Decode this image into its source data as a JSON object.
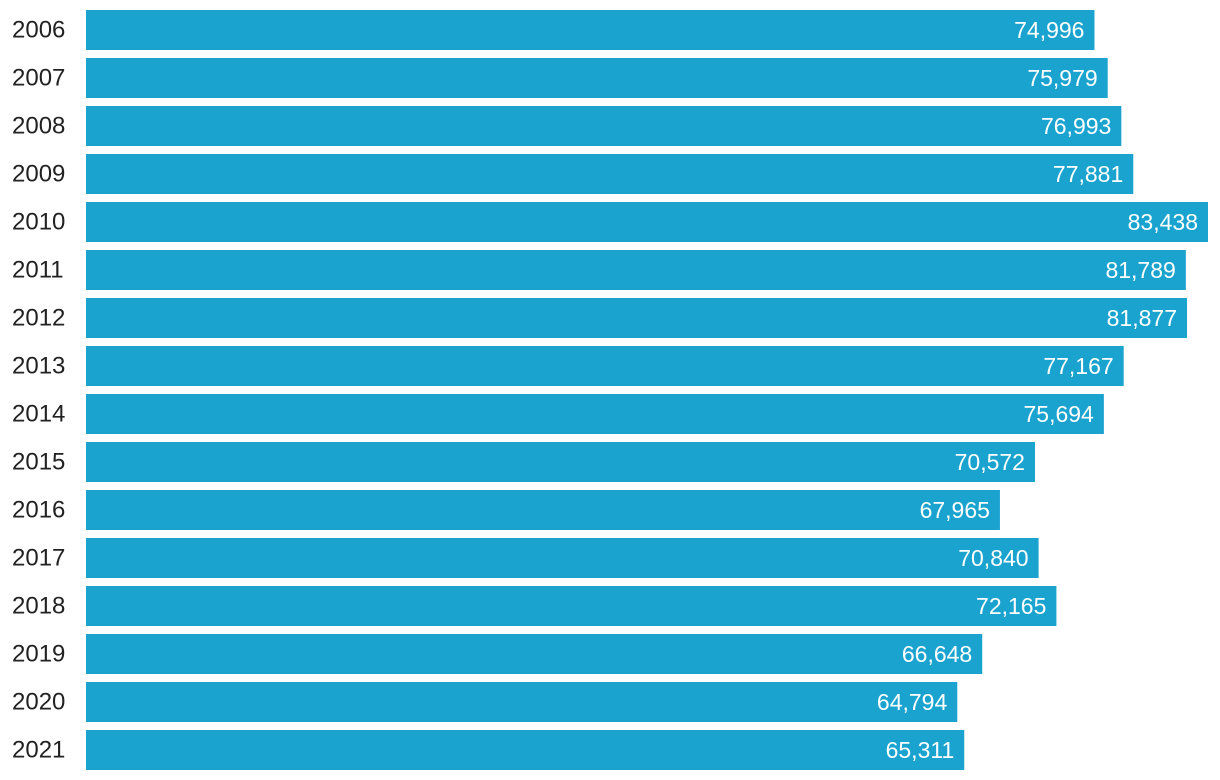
{
  "chart_data": {
    "type": "bar",
    "orientation": "horizontal",
    "title": "",
    "xlabel": "",
    "ylabel": "",
    "categories": [
      "2006",
      "2007",
      "2008",
      "2009",
      "2010",
      "2011",
      "2012",
      "2013",
      "2014",
      "2015",
      "2016",
      "2017",
      "2018",
      "2019",
      "2020",
      "2021"
    ],
    "values": [
      74996,
      75979,
      76993,
      77881,
      83438,
      81789,
      81877,
      77167,
      75694,
      70572,
      67965,
      70840,
      72165,
      66648,
      64794,
      65311
    ],
    "value_labels": [
      "74,996",
      "75,979",
      "76,993",
      "77,881",
      "83,438",
      "81,789",
      "81,877",
      "77,167",
      "75,694",
      "70,572",
      "67,965",
      "70,840",
      "72,165",
      "66,648",
      "64,794",
      "65,311"
    ],
    "xlim": [
      0,
      83438
    ],
    "grid": false,
    "legend": "none",
    "bar_color": "#1aa3cf",
    "value_label_color": "#ffffff",
    "category_label_color": "#222222"
  }
}
